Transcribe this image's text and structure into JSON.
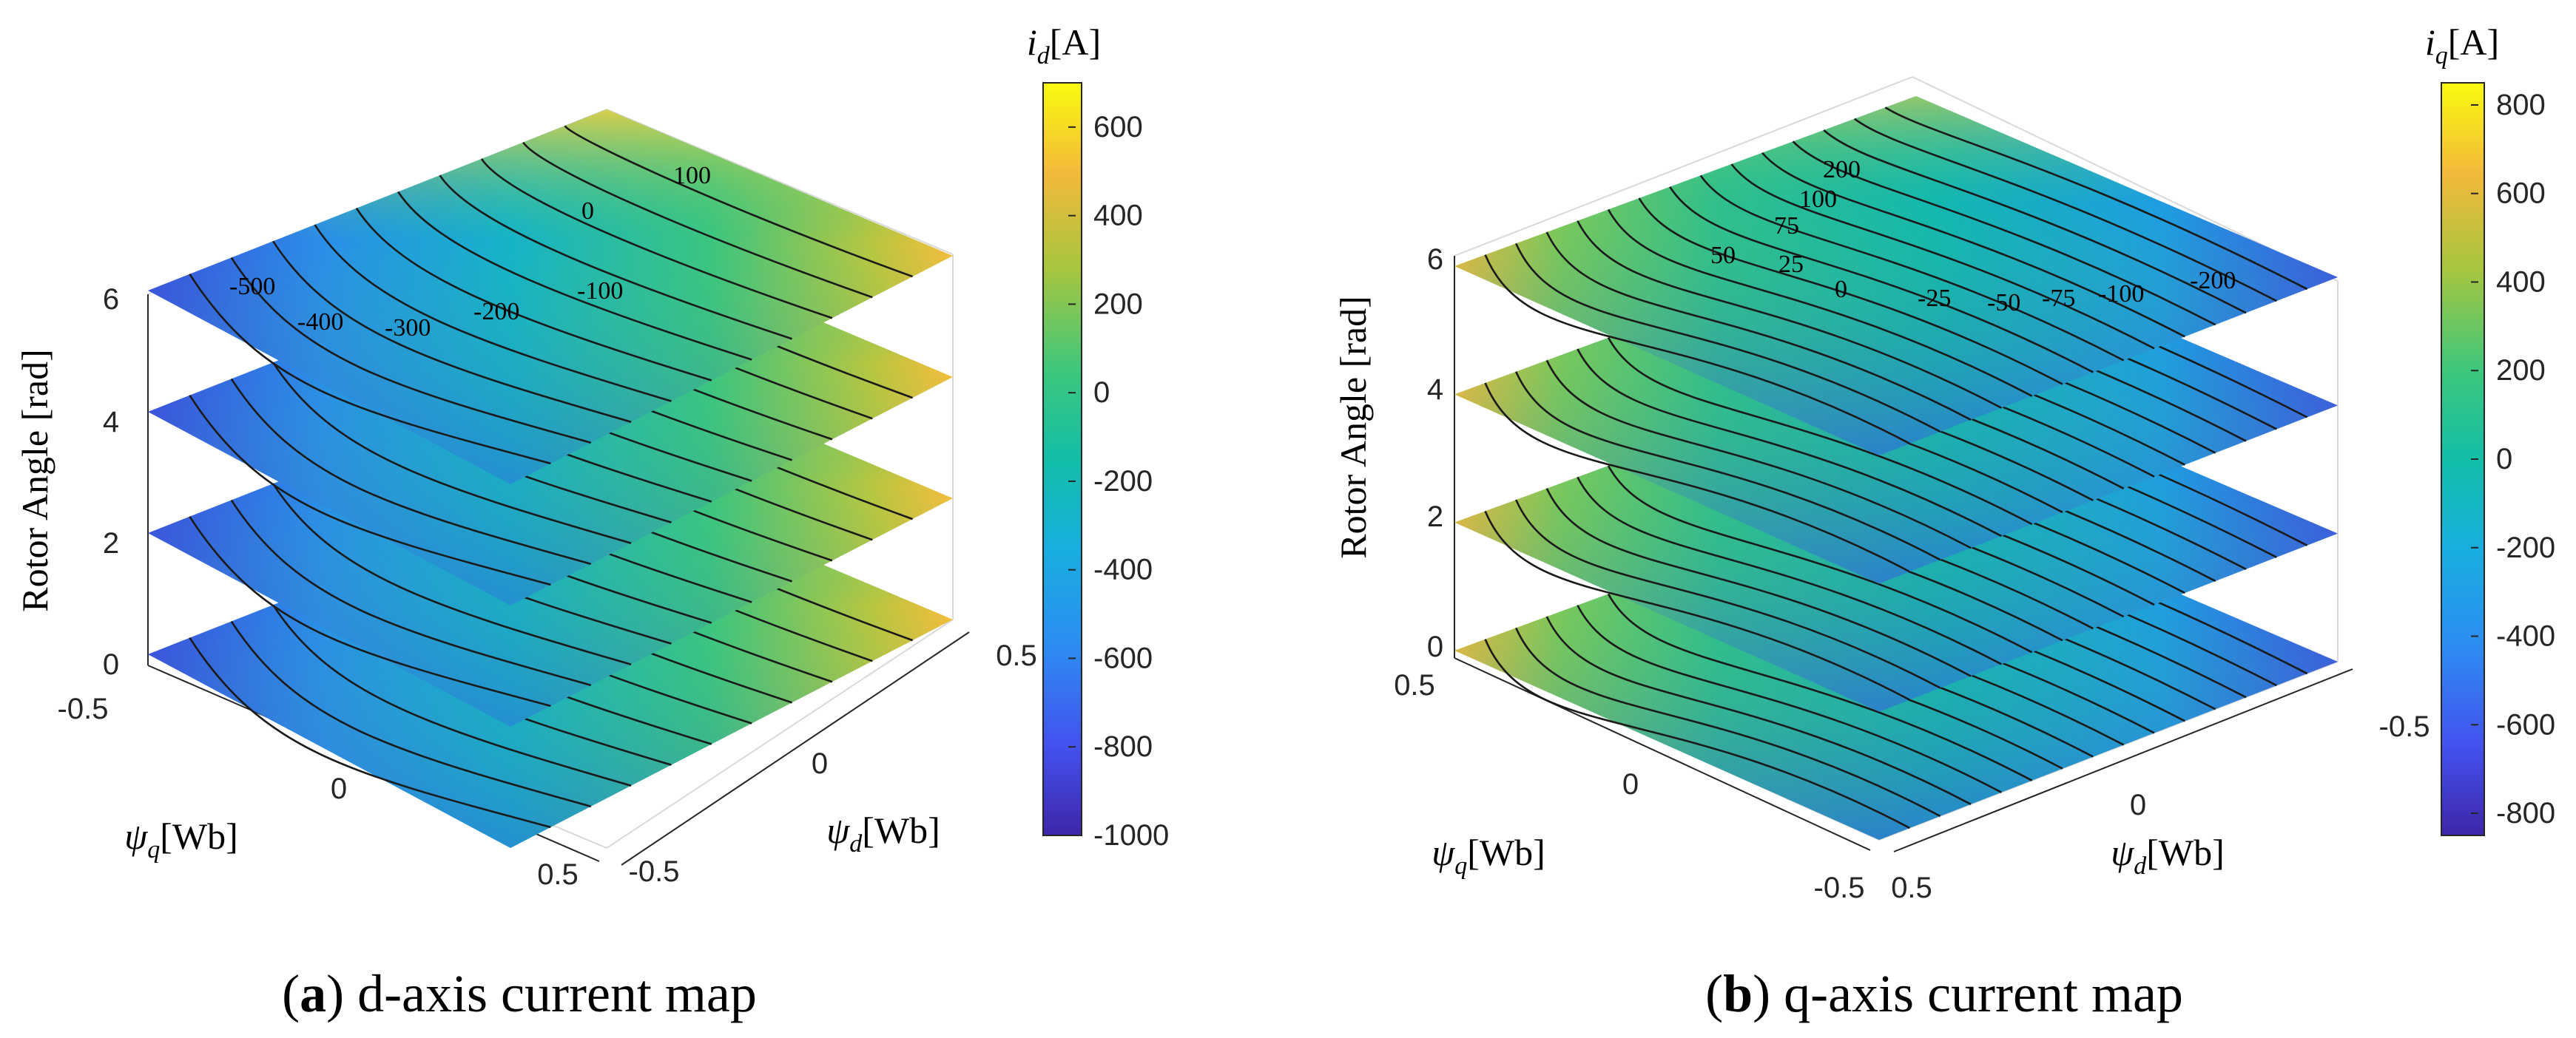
{
  "figure": {
    "panels": [
      {
        "caption_letter": "a",
        "caption_text": "d-axis current map",
        "colorbar_title_symbol": "i",
        "colorbar_title_sub": "d",
        "colorbar_title_unit": "[A]",
        "colorbar_ticks": [
          "600",
          "400",
          "200",
          "0",
          "-200",
          "-400",
          "-600",
          "-800",
          "-1000"
        ],
        "zlabel": "Rotor Angle [rad]",
        "z_ticks": [
          "0",
          "2",
          "4",
          "6"
        ],
        "psi_q_ticks": [
          "-0.5",
          "0",
          "0.5"
        ],
        "psi_d_ticks": [
          "-0.5",
          "0",
          "0.5"
        ],
        "xlabel_symbol": "ψ",
        "xlabel_sub": "q",
        "xlabel_unit": "[Wb]",
        "ylabel_symbol": "ψ",
        "ylabel_sub": "d",
        "ylabel_unit": "[Wb]",
        "contour_labels": [
          "-500",
          "-400",
          "-300",
          "-200",
          "-100",
          "0",
          "100"
        ]
      },
      {
        "caption_letter": "b",
        "caption_text": "q-axis current map",
        "colorbar_title_symbol": "i",
        "colorbar_title_sub": "q",
        "colorbar_title_unit": "[A]",
        "colorbar_ticks": [
          "800",
          "600",
          "400",
          "200",
          "0",
          "-200",
          "-400",
          "-600",
          "-800"
        ],
        "zlabel": "Rotor Angle [rad]",
        "z_ticks": [
          "0",
          "2",
          "4",
          "6"
        ],
        "psi_q_ticks": [
          "0.5",
          "0",
          "-0.5"
        ],
        "psi_d_ticks": [
          "0.5",
          "0",
          "-0.5"
        ],
        "xlabel_symbol": "ψ",
        "xlabel_sub": "q",
        "xlabel_unit": "[Wb]",
        "ylabel_symbol": "ψ",
        "ylabel_sub": "d",
        "ylabel_unit": "[Wb]",
        "contour_labels": [
          "200",
          "100",
          "75",
          "50",
          "25",
          "0",
          "-25",
          "-50",
          "-75",
          "-100",
          "-200"
        ]
      }
    ]
  },
  "chart_data": [
    {
      "type": "heatmap",
      "title": "d-axis current map",
      "xlabel": "ψq [Wb]",
      "ylabel": "ψd [Wb]",
      "zlabel": "Rotor Angle [rad]",
      "colorbar_label": "id [A]",
      "x_range": [
        -0.5,
        0.5
      ],
      "y_range": [
        -0.5,
        0.5
      ],
      "z_range": [
        0,
        6
      ],
      "slice_angles_rad": [
        0,
        2,
        4,
        6
      ],
      "color_range": [
        -1000,
        700
      ],
      "contour_levels": [
        -500,
        -400,
        -300,
        -200,
        -100,
        0,
        100
      ]
    },
    {
      "type": "heatmap",
      "title": "q-axis current map",
      "xlabel": "ψq [Wb]",
      "ylabel": "ψd [Wb]",
      "zlabel": "Rotor Angle [rad]",
      "colorbar_label": "iq [A]",
      "x_range": [
        -0.5,
        0.5
      ],
      "y_range": [
        -0.5,
        0.5
      ],
      "z_range": [
        0,
        6
      ],
      "slice_angles_rad": [
        0,
        2,
        4,
        6
      ],
      "color_range": [
        -850,
        850
      ],
      "contour_levels": [
        -200,
        -100,
        -75,
        -50,
        -25,
        0,
        25,
        50,
        75,
        100,
        200
      ]
    }
  ]
}
